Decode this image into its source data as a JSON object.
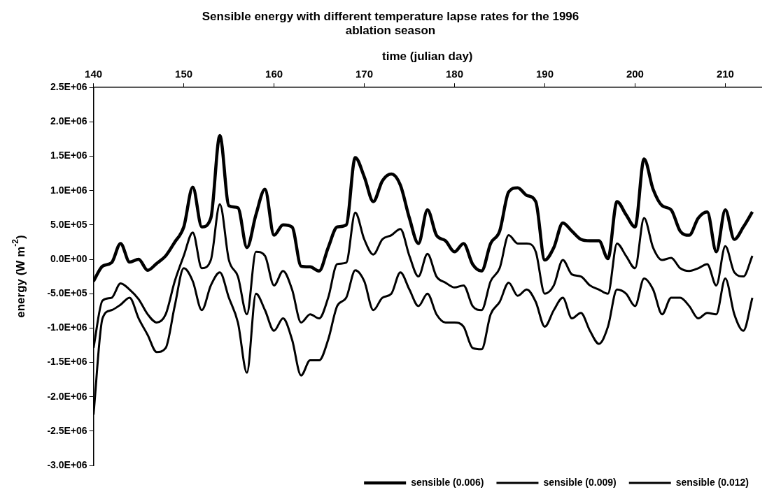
{
  "chart_data": {
    "type": "line",
    "title": "Sensible energy with different temperature lapse rates for the 1996 ablation season",
    "xlabel": "time (julian day)",
    "ylabel": "energy (W m$^{-2}$)",
    "x": [
      140,
      141,
      142,
      143,
      144,
      145,
      146,
      147,
      148,
      149,
      150,
      151,
      152,
      153,
      154,
      155,
      156,
      157,
      158,
      159,
      160,
      161,
      162,
      163,
      164,
      165,
      166,
      167,
      168,
      169,
      170,
      171,
      172,
      173,
      174,
      175,
      176,
      177,
      178,
      179,
      180,
      181,
      182,
      183,
      184,
      185,
      186,
      187,
      188,
      189,
      190,
      191,
      192,
      193,
      194,
      195,
      196,
      197,
      198,
      199,
      200,
      201,
      202,
      203,
      204,
      205,
      206,
      207,
      208,
      209,
      210,
      211,
      212,
      213
    ],
    "xlim": [
      140,
      214
    ],
    "xticks": [
      140,
      150,
      160,
      170,
      180,
      190,
      200,
      210
    ],
    "ylim": [
      -3000000,
      2500000
    ],
    "yticks": [
      {
        "value": 2500000,
        "label": "2.5E+06"
      },
      {
        "value": 2000000,
        "label": "2.0E+06"
      },
      {
        "value": 1500000,
        "label": "1.5E+06"
      },
      {
        "value": 1000000,
        "label": "1.0E+06"
      },
      {
        "value": 500000,
        "label": "5.0E+05"
      },
      {
        "value": 0,
        "label": "0.0E+00"
      },
      {
        "value": -500000,
        "label": "-5.0E+05"
      },
      {
        "value": -1000000,
        "label": "-1.0E+06"
      },
      {
        "value": -1500000,
        "label": "-1.5E+06"
      },
      {
        "value": -2000000,
        "label": "-2.0E+06"
      },
      {
        "value": -2500000,
        "label": "-2.5E+06"
      },
      {
        "value": -3000000,
        "label": "-3.0E+06"
      }
    ],
    "grid": false,
    "legend": "bottom right",
    "marker": "none",
    "line_style": "solid",
    "series": [
      {
        "name": "sensible (0.006)",
        "color": "#000000",
        "values": [
          -320000,
          -100000,
          -50000,
          230000,
          -40000,
          0,
          -160000,
          -60000,
          50000,
          250000,
          470000,
          1050000,
          470000,
          600000,
          1800000,
          780000,
          750000,
          170000,
          650000,
          1020000,
          350000,
          500000,
          470000,
          -100000,
          -110000,
          -170000,
          170000,
          470000,
          500000,
          1480000,
          1200000,
          840000,
          1140000,
          1240000,
          1080000,
          600000,
          230000,
          720000,
          350000,
          270000,
          110000,
          230000,
          -70000,
          -170000,
          230000,
          410000,
          980000,
          1040000,
          930000,
          840000,
          -10000,
          170000,
          530000,
          410000,
          290000,
          270000,
          270000,
          10000,
          840000,
          650000,
          470000,
          1460000,
          1020000,
          780000,
          720000,
          410000,
          350000,
          600000,
          690000,
          110000,
          720000,
          290000,
          470000,
          690000
        ]
      },
      {
        "name": "sensible (0.009)",
        "color": "#000000",
        "values": [
          -1290000,
          -600000,
          -560000,
          -350000,
          -440000,
          -580000,
          -800000,
          -920000,
          -800000,
          -320000,
          50000,
          390000,
          -130000,
          -10000,
          800000,
          -10000,
          -250000,
          -800000,
          110000,
          50000,
          -380000,
          -170000,
          -440000,
          -920000,
          -800000,
          -860000,
          -560000,
          -70000,
          -50000,
          680000,
          290000,
          70000,
          290000,
          350000,
          440000,
          50000,
          -250000,
          80000,
          -250000,
          -340000,
          -410000,
          -380000,
          -680000,
          -740000,
          -320000,
          -130000,
          350000,
          230000,
          230000,
          110000,
          -500000,
          -380000,
          -10000,
          -220000,
          -250000,
          -380000,
          -440000,
          -500000,
          230000,
          50000,
          -130000,
          600000,
          170000,
          -10000,
          20000,
          -130000,
          -170000,
          -130000,
          -70000,
          -380000,
          190000,
          -190000,
          -250000,
          50000
        ]
      },
      {
        "name": "sensible (0.012)",
        "color": "#000000",
        "values": [
          -2260000,
          -860000,
          -740000,
          -660000,
          -560000,
          -860000,
          -1100000,
          -1350000,
          -1290000,
          -680000,
          -130000,
          -320000,
          -740000,
          -380000,
          -190000,
          -560000,
          -920000,
          -1650000,
          -500000,
          -740000,
          -1040000,
          -860000,
          -1170000,
          -1690000,
          -1470000,
          -1470000,
          -1170000,
          -680000,
          -560000,
          -160000,
          -320000,
          -740000,
          -560000,
          -500000,
          -190000,
          -440000,
          -680000,
          -500000,
          -800000,
          -920000,
          -920000,
          -980000,
          -1290000,
          -1310000,
          -800000,
          -620000,
          -340000,
          -530000,
          -440000,
          -620000,
          -980000,
          -740000,
          -560000,
          -860000,
          -780000,
          -1040000,
          -1230000,
          -980000,
          -440000,
          -500000,
          -680000,
          -280000,
          -440000,
          -800000,
          -560000,
          -560000,
          -680000,
          -860000,
          -780000,
          -800000,
          -280000,
          -800000,
          -1040000,
          -560000
        ]
      }
    ]
  }
}
